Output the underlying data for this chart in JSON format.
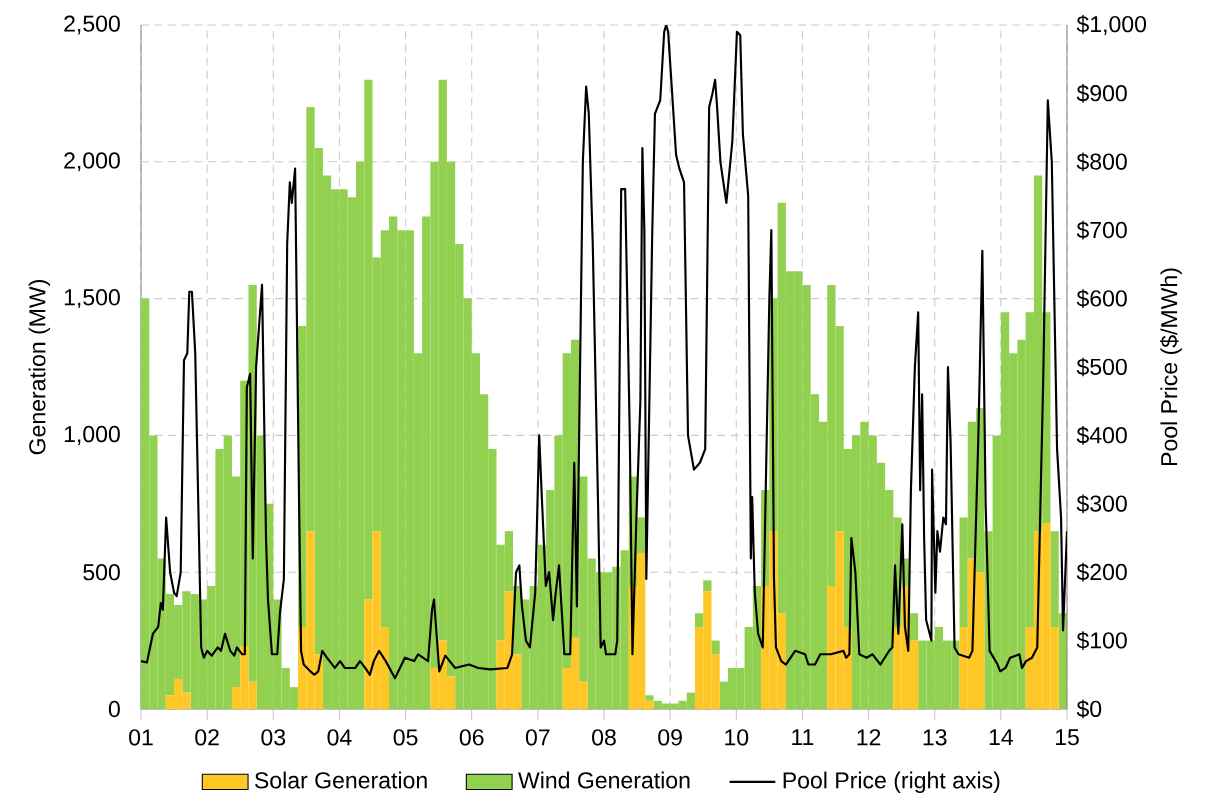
{
  "chart_data": {
    "type": "bar",
    "stacked": true,
    "grid": true,
    "legend": "bottom",
    "ylabel": "Generation (MW)",
    "y2label": "Pool Price ($/MWh)",
    "xlim": [
      1,
      15
    ],
    "xticks": [
      {
        "value": 1,
        "label": "01"
      },
      {
        "value": 2,
        "label": "02"
      },
      {
        "value": 3,
        "label": "03"
      },
      {
        "value": 4,
        "label": "04"
      },
      {
        "value": 5,
        "label": "05"
      },
      {
        "value": 6,
        "label": "06"
      },
      {
        "value": 7,
        "label": "07"
      },
      {
        "value": 8,
        "label": "08"
      },
      {
        "value": 9,
        "label": "09"
      },
      {
        "value": 10,
        "label": "10"
      },
      {
        "value": 11,
        "label": "11"
      },
      {
        "value": 12,
        "label": "12"
      },
      {
        "value": 13,
        "label": "13"
      },
      {
        "value": 14,
        "label": "14"
      },
      {
        "value": 15,
        "label": "15"
      }
    ],
    "ylim": [
      0,
      2500
    ],
    "yticks": [
      0,
      500,
      {
        "value": 1000,
        "label": "1,000"
      },
      {
        "value": 1500,
        "label": "1,500"
      },
      {
        "value": 2000,
        "label": "2,000"
      },
      {
        "value": 2500,
        "label": "2,500"
      }
    ],
    "y2lim": [
      0,
      1000
    ],
    "y2ticks": [
      {
        "value": 0,
        "label": "$0"
      },
      {
        "value": 100,
        "label": "$100"
      },
      {
        "value": 200,
        "label": "$200"
      },
      {
        "value": 300,
        "label": "$300"
      },
      {
        "value": 400,
        "label": "$400"
      },
      {
        "value": 500,
        "label": "$500"
      },
      {
        "value": 600,
        "label": "$600"
      },
      {
        "value": 700,
        "label": "$700"
      },
      {
        "value": 800,
        "label": "$800"
      },
      {
        "value": 900,
        "label": "$900"
      },
      {
        "value": 1000,
        "label": "$1,000"
      }
    ],
    "x": [
      1.0625,
      1.1875,
      1.3125,
      1.4375,
      1.5625,
      1.6875,
      1.8125,
      1.9375,
      2.0625,
      2.1875,
      2.3125,
      2.4375,
      2.5625,
      2.6875,
      2.8125,
      2.9375,
      3.0625,
      3.1875,
      3.3125,
      3.4375,
      3.5625,
      3.6875,
      3.8125,
      3.9375,
      4.0625,
      4.1875,
      4.3125,
      4.4375,
      4.5625,
      4.6875,
      4.8125,
      4.9375,
      5.0625,
      5.1875,
      5.3125,
      5.4375,
      5.5625,
      5.6875,
      5.8125,
      5.9375,
      6.0625,
      6.1875,
      6.3125,
      6.4375,
      6.5625,
      6.6875,
      6.8125,
      6.9375,
      7.0625,
      7.1875,
      7.3125,
      7.4375,
      7.5625,
      7.6875,
      7.8125,
      7.9375,
      8.0625,
      8.1875,
      8.3125,
      8.4375,
      8.5625,
      8.6875,
      8.8125,
      8.9375,
      9.0625,
      9.1875,
      9.3125,
      9.4375,
      9.5625,
      9.6875,
      9.8125,
      9.9375,
      10.0625,
      10.1875,
      10.3125,
      10.4375,
      10.5625,
      10.6875,
      10.8125,
      10.9375,
      11.0625,
      11.1875,
      11.3125,
      11.4375,
      11.5625,
      11.6875,
      11.8125,
      11.9375,
      12.0625,
      12.1875,
      12.3125,
      12.4375,
      12.5625,
      12.6875,
      12.8125,
      12.9375,
      13.0625,
      13.1875,
      13.3125,
      13.4375,
      13.5625,
      13.6875,
      13.8125,
      13.9375,
      14.0625,
      14.1875,
      14.3125,
      14.4375,
      14.5625,
      14.6875,
      14.8125,
      14.9375
    ],
    "series": [
      {
        "name": "Solar Generation",
        "type": "bar",
        "color": "#ffc726",
        "values": [
          0,
          0,
          0,
          50,
          110,
          60,
          0,
          0,
          0,
          0,
          0,
          80,
          230,
          100,
          0,
          0,
          0,
          0,
          0,
          300,
          650,
          200,
          0,
          0,
          0,
          0,
          0,
          400,
          650,
          300,
          0,
          0,
          0,
          0,
          0,
          150,
          250,
          120,
          0,
          0,
          0,
          0,
          0,
          250,
          430,
          200,
          0,
          0,
          0,
          0,
          0,
          150,
          260,
          100,
          0,
          0,
          0,
          0,
          0,
          450,
          570,
          30,
          0,
          0,
          0,
          0,
          0,
          300,
          430,
          200,
          0,
          0,
          0,
          0,
          0,
          450,
          650,
          350,
          0,
          0,
          0,
          0,
          0,
          450,
          650,
          300,
          0,
          0,
          0,
          0,
          0,
          300,
          450,
          250,
          0,
          0,
          0,
          0,
          0,
          300,
          550,
          500,
          0,
          0,
          0,
          0,
          0,
          300,
          650,
          680,
          300,
          0
        ]
      },
      {
        "name": "Wind Generation",
        "type": "bar",
        "color": "#92d050",
        "values": [
          1500,
          1000,
          550,
          370,
          270,
          370,
          420,
          400,
          450,
          950,
          1000,
          770,
          970,
          1450,
          1000,
          750,
          400,
          150,
          80,
          1100,
          1550,
          1850,
          1950,
          1900,
          1900,
          1870,
          2000,
          1900,
          1000,
          1450,
          1800,
          1750,
          1750,
          1300,
          1800,
          1850,
          2050,
          1880,
          1700,
          1500,
          1300,
          1150,
          950,
          350,
          220,
          250,
          400,
          450,
          600,
          800,
          1000,
          1150,
          1090,
          750,
          550,
          500,
          500,
          520,
          580,
          400,
          130,
          20,
          30,
          20,
          20,
          30,
          60,
          50,
          40,
          50,
          100,
          150,
          150,
          300,
          450,
          350,
          850,
          1500,
          1600,
          1600,
          1550,
          1150,
          1050,
          1100,
          750,
          650,
          1000,
          1050,
          1000,
          900,
          800,
          400,
          100,
          100,
          250,
          250,
          300,
          250,
          250,
          400,
          500,
          600,
          650,
          1000,
          1450,
          1300,
          1350,
          1150,
          1300,
          770,
          350,
          350
        ]
      },
      {
        "name": "Pool Price (right axis)",
        "type": "line",
        "axis": "y2",
        "color": "#000000",
        "x": [
          1.0,
          1.09,
          1.18,
          1.26,
          1.3,
          1.33,
          1.38,
          1.44,
          1.5,
          1.54,
          1.6,
          1.65,
          1.7,
          1.73,
          1.77,
          1.82,
          1.91,
          1.95,
          2.0,
          2.07,
          2.16,
          2.21,
          2.27,
          2.35,
          2.41,
          2.45,
          2.53,
          2.57,
          2.6,
          2.65,
          2.69,
          2.74,
          2.83,
          2.89,
          2.92,
          2.98,
          3.06,
          3.1,
          3.16,
          3.21,
          3.25,
          3.28,
          3.33,
          3.39,
          3.42,
          3.46,
          3.56,
          3.62,
          3.68,
          3.74,
          3.81,
          3.93,
          4.01,
          4.08,
          4.24,
          4.31,
          4.39,
          4.46,
          4.52,
          4.6,
          4.7,
          4.84,
          4.99,
          5.13,
          5.19,
          5.34,
          5.4,
          5.43,
          5.51,
          5.6,
          5.75,
          5.96,
          6.1,
          6.28,
          6.54,
          6.61,
          6.67,
          6.72,
          6.76,
          6.82,
          6.88,
          6.96,
          7.02,
          7.06,
          7.12,
          7.17,
          7.23,
          7.27,
          7.32,
          7.4,
          7.49,
          7.55,
          7.59,
          7.62,
          7.68,
          7.73,
          7.77,
          7.83,
          7.91,
          7.95,
          8.0,
          8.03,
          8.17,
          8.2,
          8.26,
          8.32,
          8.39,
          8.43,
          8.49,
          8.55,
          8.58,
          8.61,
          8.64,
          8.73,
          8.77,
          8.85,
          8.91,
          8.94,
          8.97,
          9.03,
          9.09,
          9.14,
          9.21,
          9.27,
          9.36,
          9.45,
          9.53,
          9.59,
          9.64,
          9.68,
          9.71,
          9.76,
          9.85,
          9.94,
          10.01,
          10.06,
          10.1,
          10.18,
          10.22,
          10.24,
          10.28,
          10.33,
          10.4,
          10.5,
          10.53,
          10.57,
          10.6,
          10.68,
          10.75,
          10.89,
          11.04,
          11.09,
          11.19,
          11.27,
          11.43,
          11.62,
          11.66,
          11.71,
          11.74,
          11.8,
          11.86,
          11.97,
          12.06,
          12.18,
          12.31,
          12.36,
          12.4,
          12.45,
          12.51,
          12.55,
          12.6,
          12.64,
          12.7,
          12.75,
          12.78,
          12.81,
          12.84,
          12.87,
          12.95,
          12.96,
          13.01,
          13.04,
          13.08,
          13.13,
          13.17,
          13.2,
          13.24,
          13.3,
          13.36,
          13.52,
          13.57,
          13.66,
          13.72,
          13.77,
          13.83,
          13.95,
          13.99,
          14.07,
          14.14,
          14.28,
          14.32,
          14.38,
          14.47,
          14.55,
          14.64,
          14.71,
          14.77,
          14.85,
          14.91,
          14.94,
          15.0
        ],
        "values": [
          70,
          68,
          110,
          120,
          155,
          145,
          280,
          200,
          170,
          165,
          200,
          510,
          520,
          610,
          610,
          520,
          90,
          75,
          85,
          78,
          90,
          85,
          110,
          85,
          78,
          90,
          80,
          80,
          470,
          490,
          220,
          500,
          620,
          250,
          160,
          80,
          80,
          140,
          190,
          680,
          770,
          740,
          790,
          300,
          85,
          65,
          55,
          50,
          55,
          85,
          75,
          60,
          70,
          60,
          60,
          70,
          60,
          50,
          70,
          85,
          70,
          45,
          75,
          70,
          80,
          70,
          145,
          160,
          55,
          78,
          60,
          65,
          60,
          58,
          60,
          80,
          200,
          210,
          150,
          100,
          90,
          170,
          400,
          310,
          180,
          200,
          130,
          170,
          210,
          80,
          80,
          360,
          150,
          370,
          800,
          910,
          870,
          680,
          300,
          90,
          100,
          80,
          80,
          100,
          760,
          760,
          400,
          80,
          280,
          450,
          820,
          700,
          190,
          700,
          870,
          890,
          990,
          1000,
          990,
          900,
          810,
          790,
          770,
          400,
          350,
          360,
          380,
          880,
          900,
          920,
          880,
          800,
          740,
          830,
          990,
          985,
          840,
          750,
          220,
          310,
          170,
          110,
          90,
          600,
          700,
          190,
          90,
          70,
          65,
          85,
          80,
          65,
          65,
          80,
          80,
          85,
          75,
          80,
          250,
          200,
          80,
          75,
          80,
          65,
          85,
          90,
          210,
          110,
          270,
          120,
          85,
          320,
          500,
          580,
          320,
          460,
          250,
          130,
          100,
          350,
          170,
          260,
          230,
          280,
          270,
          500,
          390,
          90,
          80,
          75,
          85,
          400,
          670,
          300,
          85,
          65,
          55,
          60,
          75,
          80,
          60,
          70,
          75,
          90,
          480,
          890,
          800,
          380,
          280,
          115,
          260
        ]
      }
    ]
  }
}
